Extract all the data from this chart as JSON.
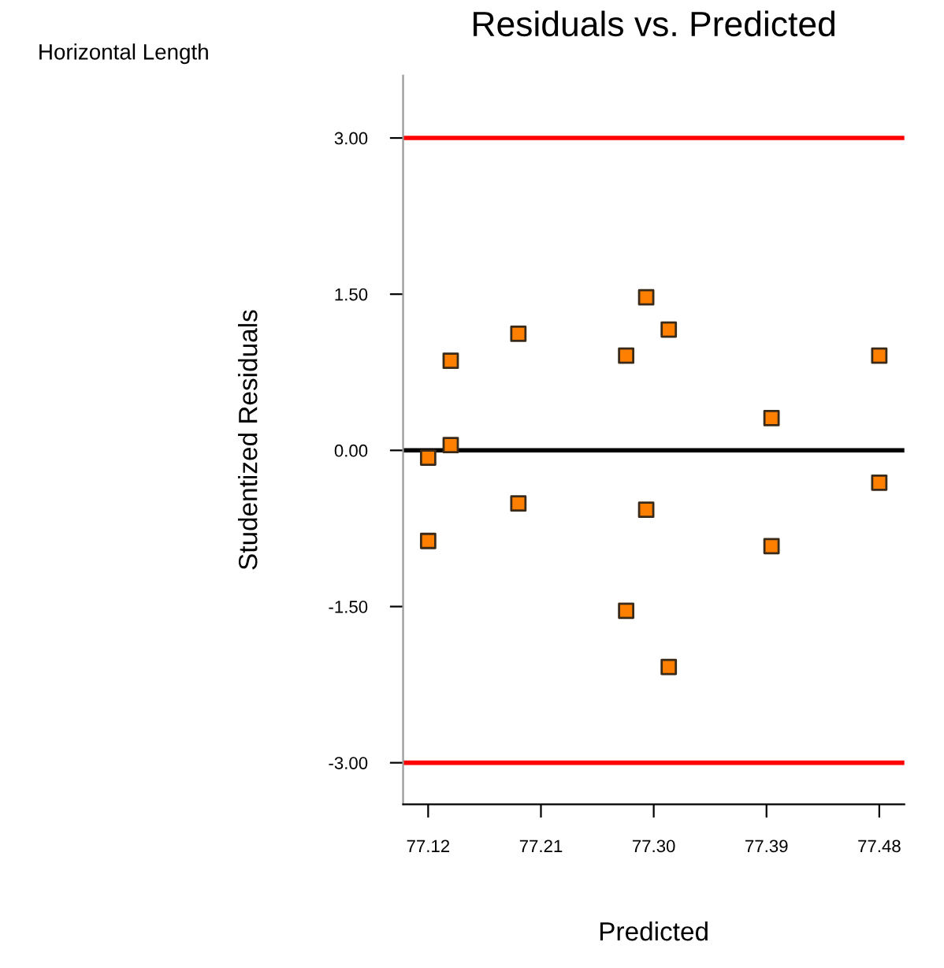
{
  "chart_data": {
    "type": "scatter",
    "title": "Residuals vs. Predicted",
    "xlabel": "Predicted",
    "ylabel": "Studentized Residuals",
    "annotations": [
      "Horizontal Length"
    ],
    "x": [
      77.12,
      77.12,
      77.138,
      77.138,
      77.192,
      77.192,
      77.278,
      77.278,
      77.294,
      77.294,
      77.312,
      77.312,
      77.394,
      77.394,
      77.48,
      77.48
    ],
    "series": [
      {
        "color": "#ff8000",
        "values": [
          -0.07,
          -0.87,
          0.86,
          0.05,
          1.12,
          -0.51,
          0.91,
          -1.54,
          1.47,
          -0.57,
          1.16,
          -2.08,
          0.31,
          -0.92,
          0.91,
          -0.31
        ]
      }
    ],
    "marker": "square",
    "xlim": [
      77.1,
      77.5
    ],
    "xticks": [
      {
        "value": 77.12,
        "label": "77.12"
      },
      {
        "value": 77.21,
        "label": "77.21"
      },
      {
        "value": 77.3,
        "label": "77.30"
      },
      {
        "value": 77.39,
        "label": "77.39"
      },
      {
        "value": 77.48,
        "label": "77.48"
      }
    ],
    "ylim": [
      -3.4,
      3.6
    ],
    "yticks": [
      {
        "value": -3,
        "label": "-3.00"
      },
      {
        "value": -1.5,
        "label": "-1.50"
      },
      {
        "value": 0,
        "label": "0.00"
      },
      {
        "value": 1.5,
        "label": "1.50"
      },
      {
        "value": 3,
        "label": "3.00"
      }
    ],
    "ref_lines": [
      {
        "axis": "y",
        "value": 3,
        "color": "#ff0000"
      },
      {
        "axis": "y",
        "value": 0,
        "color": "#000000"
      },
      {
        "axis": "y",
        "value": -3,
        "color": "#ff0000"
      }
    ],
    "line_style": "solid"
  }
}
